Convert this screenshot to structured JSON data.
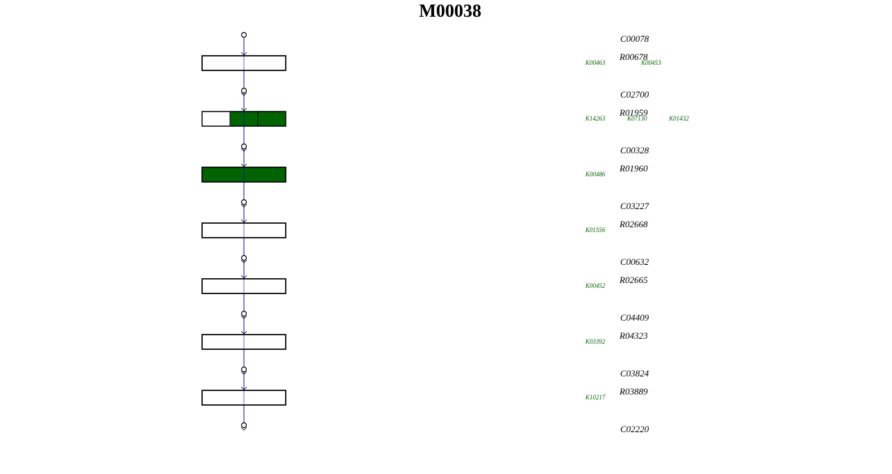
{
  "title": "M00038",
  "compounds": [
    "C00078",
    "C02700",
    "C00328",
    "C03227",
    "C00632",
    "C04409",
    "C03824",
    "C02220"
  ],
  "reactions": [
    {
      "id": "R00678",
      "kos": [
        "K00463",
        "K00453"
      ],
      "segments": [
        false
      ]
    },
    {
      "id": "R01959",
      "kos": [
        "K14263",
        "K07130",
        "K01432"
      ],
      "segments": [
        false,
        true,
        true
      ]
    },
    {
      "id": "R01960",
      "kos": [
        "K00486"
      ],
      "segments": [
        true
      ]
    },
    {
      "id": "R02668",
      "kos": [
        "K01556"
      ],
      "segments": [
        false
      ]
    },
    {
      "id": "R02665",
      "kos": [
        "K00452"
      ],
      "segments": [
        false
      ]
    },
    {
      "id": "R04323",
      "kos": [
        "K03392"
      ],
      "segments": [
        false
      ]
    },
    {
      "id": "R03889",
      "kos": [
        "K10217"
      ],
      "segments": [
        false
      ]
    }
  ],
  "fill_color": "#006400"
}
